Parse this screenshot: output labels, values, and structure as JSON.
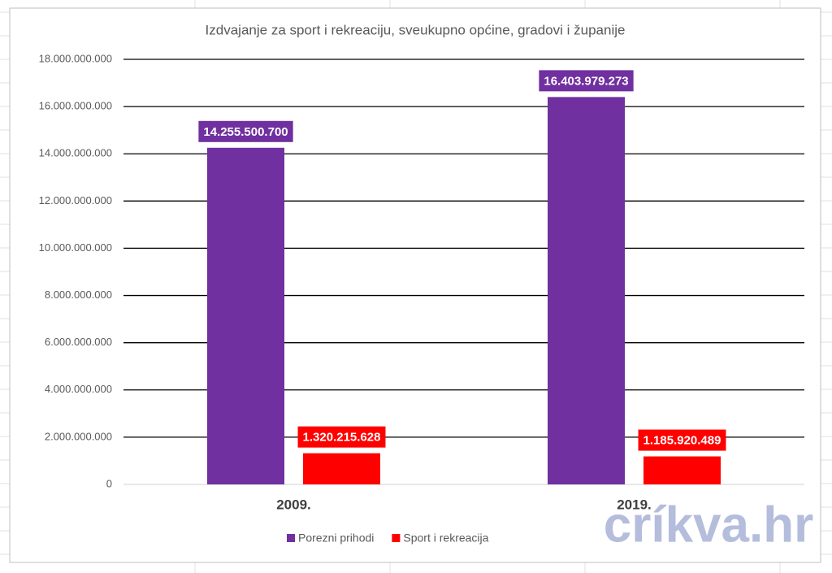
{
  "chart_data": {
    "type": "bar",
    "title": "Izdvajanje za sport i rekreaciju, sveukupno općine, gradovi i županije",
    "categories": [
      "2009.",
      "2019."
    ],
    "series": [
      {
        "name": "Porezni prihodi",
        "color": "#7030a0",
        "values": [
          14255500700,
          16403979273
        ],
        "value_labels": [
          "14.255.500.700",
          "16.403.979.273"
        ]
      },
      {
        "name": "Sport i rekreacija",
        "color": "#ff0000",
        "values": [
          1320215628,
          1185920489
        ],
        "value_labels": [
          "1.320.215.628",
          "1.185.920.489"
        ]
      }
    ],
    "ylim": [
      0,
      18000000000
    ],
    "yticks": [
      0,
      {
        "value": 2000000000,
        "label": "2.000.000.000"
      },
      {
        "value": 4000000000,
        "label": "4.000.000.000"
      },
      {
        "value": 6000000000,
        "label": "6.000.000.000"
      },
      {
        "value": 8000000000,
        "label": "8.000.000.000"
      },
      {
        "value": 10000000000,
        "label": "10.000.000.000"
      },
      {
        "value": 12000000000,
        "label": "12.000.000.000"
      },
      {
        "value": 14000000000,
        "label": "14.000.000.000"
      },
      {
        "value": 16000000000,
        "label": "16.000.000.000"
      },
      {
        "value": 18000000000,
        "label": "18.000.000.000"
      }
    ],
    "grid": true,
    "legend": "bottom",
    "watermark": "críkva.hr"
  }
}
